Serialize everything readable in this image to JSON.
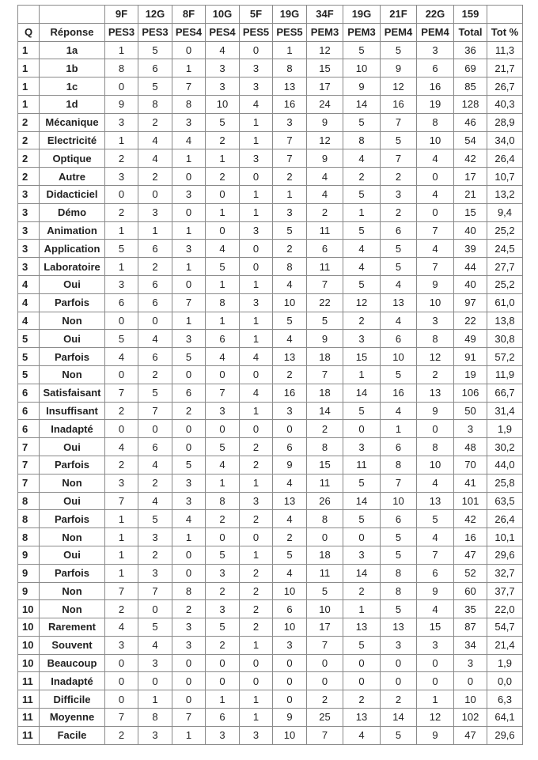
{
  "header": {
    "row1": [
      "",
      "",
      "9F",
      "12G",
      "8F",
      "10G",
      "5F",
      "19G",
      "34F",
      "19G",
      "21F",
      "22G",
      "159",
      ""
    ],
    "row2": [
      "Q",
      "Réponse",
      "PES3",
      "PES3",
      "PES4",
      "PES4",
      "PES5",
      "PES5",
      "PEM3",
      "PEM3",
      "PEM4",
      "PEM4",
      "Total",
      "Tot %"
    ]
  },
  "rows": [
    [
      "1",
      "1a",
      "1",
      "5",
      "0",
      "4",
      "0",
      "1",
      "12",
      "5",
      "5",
      "3",
      "36",
      "11,3"
    ],
    [
      "1",
      "1b",
      "8",
      "6",
      "1",
      "3",
      "3",
      "8",
      "15",
      "10",
      "9",
      "6",
      "69",
      "21,7"
    ],
    [
      "1",
      "1c",
      "0",
      "5",
      "7",
      "3",
      "3",
      "13",
      "17",
      "9",
      "12",
      "16",
      "85",
      "26,7"
    ],
    [
      "1",
      "1d",
      "9",
      "8",
      "8",
      "10",
      "4",
      "16",
      "24",
      "14",
      "16",
      "19",
      "128",
      "40,3"
    ],
    [
      "2",
      "Mécanique",
      "3",
      "2",
      "3",
      "5",
      "1",
      "3",
      "9",
      "5",
      "7",
      "8",
      "46",
      "28,9"
    ],
    [
      "2",
      "Electricité",
      "1",
      "4",
      "4",
      "2",
      "1",
      "7",
      "12",
      "8",
      "5",
      "10",
      "54",
      "34,0"
    ],
    [
      "2",
      "Optique",
      "2",
      "4",
      "1",
      "1",
      "3",
      "7",
      "9",
      "4",
      "7",
      "4",
      "42",
      "26,4"
    ],
    [
      "2",
      "Autre",
      "3",
      "2",
      "0",
      "2",
      "0",
      "2",
      "4",
      "2",
      "2",
      "0",
      "17",
      "10,7"
    ],
    [
      "3",
      "Didacticiel",
      "0",
      "0",
      "3",
      "0",
      "1",
      "1",
      "4",
      "5",
      "3",
      "4",
      "21",
      "13,2"
    ],
    [
      "3",
      "Démo",
      "2",
      "3",
      "0",
      "1",
      "1",
      "3",
      "2",
      "1",
      "2",
      "0",
      "15",
      "9,4"
    ],
    [
      "3",
      "Animation",
      "1",
      "1",
      "1",
      "0",
      "3",
      "5",
      "11",
      "5",
      "6",
      "7",
      "40",
      "25,2"
    ],
    [
      "3",
      "Application",
      "5",
      "6",
      "3",
      "4",
      "0",
      "2",
      "6",
      "4",
      "5",
      "4",
      "39",
      "24,5"
    ],
    [
      "3",
      "Laboratoire",
      "1",
      "2",
      "1",
      "5",
      "0",
      "8",
      "11",
      "4",
      "5",
      "7",
      "44",
      "27,7"
    ],
    [
      "4",
      "Oui",
      "3",
      "6",
      "0",
      "1",
      "1",
      "4",
      "7",
      "5",
      "4",
      "9",
      "40",
      "25,2"
    ],
    [
      "4",
      "Parfois",
      "6",
      "6",
      "7",
      "8",
      "3",
      "10",
      "22",
      "12",
      "13",
      "10",
      "97",
      "61,0"
    ],
    [
      "4",
      "Non",
      "0",
      "0",
      "1",
      "1",
      "1",
      "5",
      "5",
      "2",
      "4",
      "3",
      "22",
      "13,8"
    ],
    [
      "5",
      "Oui",
      "5",
      "4",
      "3",
      "6",
      "1",
      "4",
      "9",
      "3",
      "6",
      "8",
      "49",
      "30,8"
    ],
    [
      "5",
      "Parfois",
      "4",
      "6",
      "5",
      "4",
      "4",
      "13",
      "18",
      "15",
      "10",
      "12",
      "91",
      "57,2"
    ],
    [
      "5",
      "Non",
      "0",
      "2",
      "0",
      "0",
      "0",
      "2",
      "7",
      "1",
      "5",
      "2",
      "19",
      "11,9"
    ],
    [
      "6",
      "Satisfaisant",
      "7",
      "5",
      "6",
      "7",
      "4",
      "16",
      "18",
      "14",
      "16",
      "13",
      "106",
      "66,7"
    ],
    [
      "6",
      "Insuffisant",
      "2",
      "7",
      "2",
      "3",
      "1",
      "3",
      "14",
      "5",
      "4",
      "9",
      "50",
      "31,4"
    ],
    [
      "6",
      "Inadapté",
      "0",
      "0",
      "0",
      "0",
      "0",
      "0",
      "2",
      "0",
      "1",
      "0",
      "3",
      "1,9"
    ],
    [
      "7",
      "Oui",
      "4",
      "6",
      "0",
      "5",
      "2",
      "6",
      "8",
      "3",
      "6",
      "8",
      "48",
      "30,2"
    ],
    [
      "7",
      "Parfois",
      "2",
      "4",
      "5",
      "4",
      "2",
      "9",
      "15",
      "11",
      "8",
      "10",
      "70",
      "44,0"
    ],
    [
      "7",
      "Non",
      "3",
      "2",
      "3",
      "1",
      "1",
      "4",
      "11",
      "5",
      "7",
      "4",
      "41",
      "25,8"
    ],
    [
      "8",
      "Oui",
      "7",
      "4",
      "3",
      "8",
      "3",
      "13",
      "26",
      "14",
      "10",
      "13",
      "101",
      "63,5"
    ],
    [
      "8",
      "Parfois",
      "1",
      "5",
      "4",
      "2",
      "2",
      "4",
      "8",
      "5",
      "6",
      "5",
      "42",
      "26,4"
    ],
    [
      "8",
      "Non",
      "1",
      "3",
      "1",
      "0",
      "0",
      "2",
      "0",
      "0",
      "5",
      "4",
      "16",
      "10,1"
    ],
    [
      "9",
      "Oui",
      "1",
      "2",
      "0",
      "5",
      "1",
      "5",
      "18",
      "3",
      "5",
      "7",
      "47",
      "29,6"
    ],
    [
      "9",
      "Parfois",
      "1",
      "3",
      "0",
      "3",
      "2",
      "4",
      "11",
      "14",
      "8",
      "6",
      "52",
      "32,7"
    ],
    [
      "9",
      "Non",
      "7",
      "7",
      "8",
      "2",
      "2",
      "10",
      "5",
      "2",
      "8",
      "9",
      "60",
      "37,7"
    ],
    [
      "10",
      "Non",
      "2",
      "0",
      "2",
      "3",
      "2",
      "6",
      "10",
      "1",
      "5",
      "4",
      "35",
      "22,0"
    ],
    [
      "10",
      "Rarement",
      "4",
      "5",
      "3",
      "5",
      "2",
      "10",
      "17",
      "13",
      "13",
      "15",
      "87",
      "54,7"
    ],
    [
      "10",
      "Souvent",
      "3",
      "4",
      "3",
      "2",
      "1",
      "3",
      "7",
      "5",
      "3",
      "3",
      "34",
      "21,4"
    ],
    [
      "10",
      "Beaucoup",
      "0",
      "3",
      "0",
      "0",
      "0",
      "0",
      "0",
      "0",
      "0",
      "0",
      "3",
      "1,9"
    ],
    [
      "11",
      "Inadapté",
      "0",
      "0",
      "0",
      "0",
      "0",
      "0",
      "0",
      "0",
      "0",
      "0",
      "0",
      "0,0"
    ],
    [
      "11",
      "Difficile",
      "0",
      "1",
      "0",
      "1",
      "1",
      "0",
      "2",
      "2",
      "2",
      "1",
      "10",
      "6,3"
    ],
    [
      "11",
      "Moyenne",
      "7",
      "8",
      "7",
      "6",
      "1",
      "9",
      "25",
      "13",
      "14",
      "12",
      "102",
      "64,1"
    ],
    [
      "11",
      "Facile",
      "2",
      "3",
      "1",
      "3",
      "3",
      "10",
      "7",
      "4",
      "5",
      "9",
      "47",
      "29,6"
    ]
  ]
}
